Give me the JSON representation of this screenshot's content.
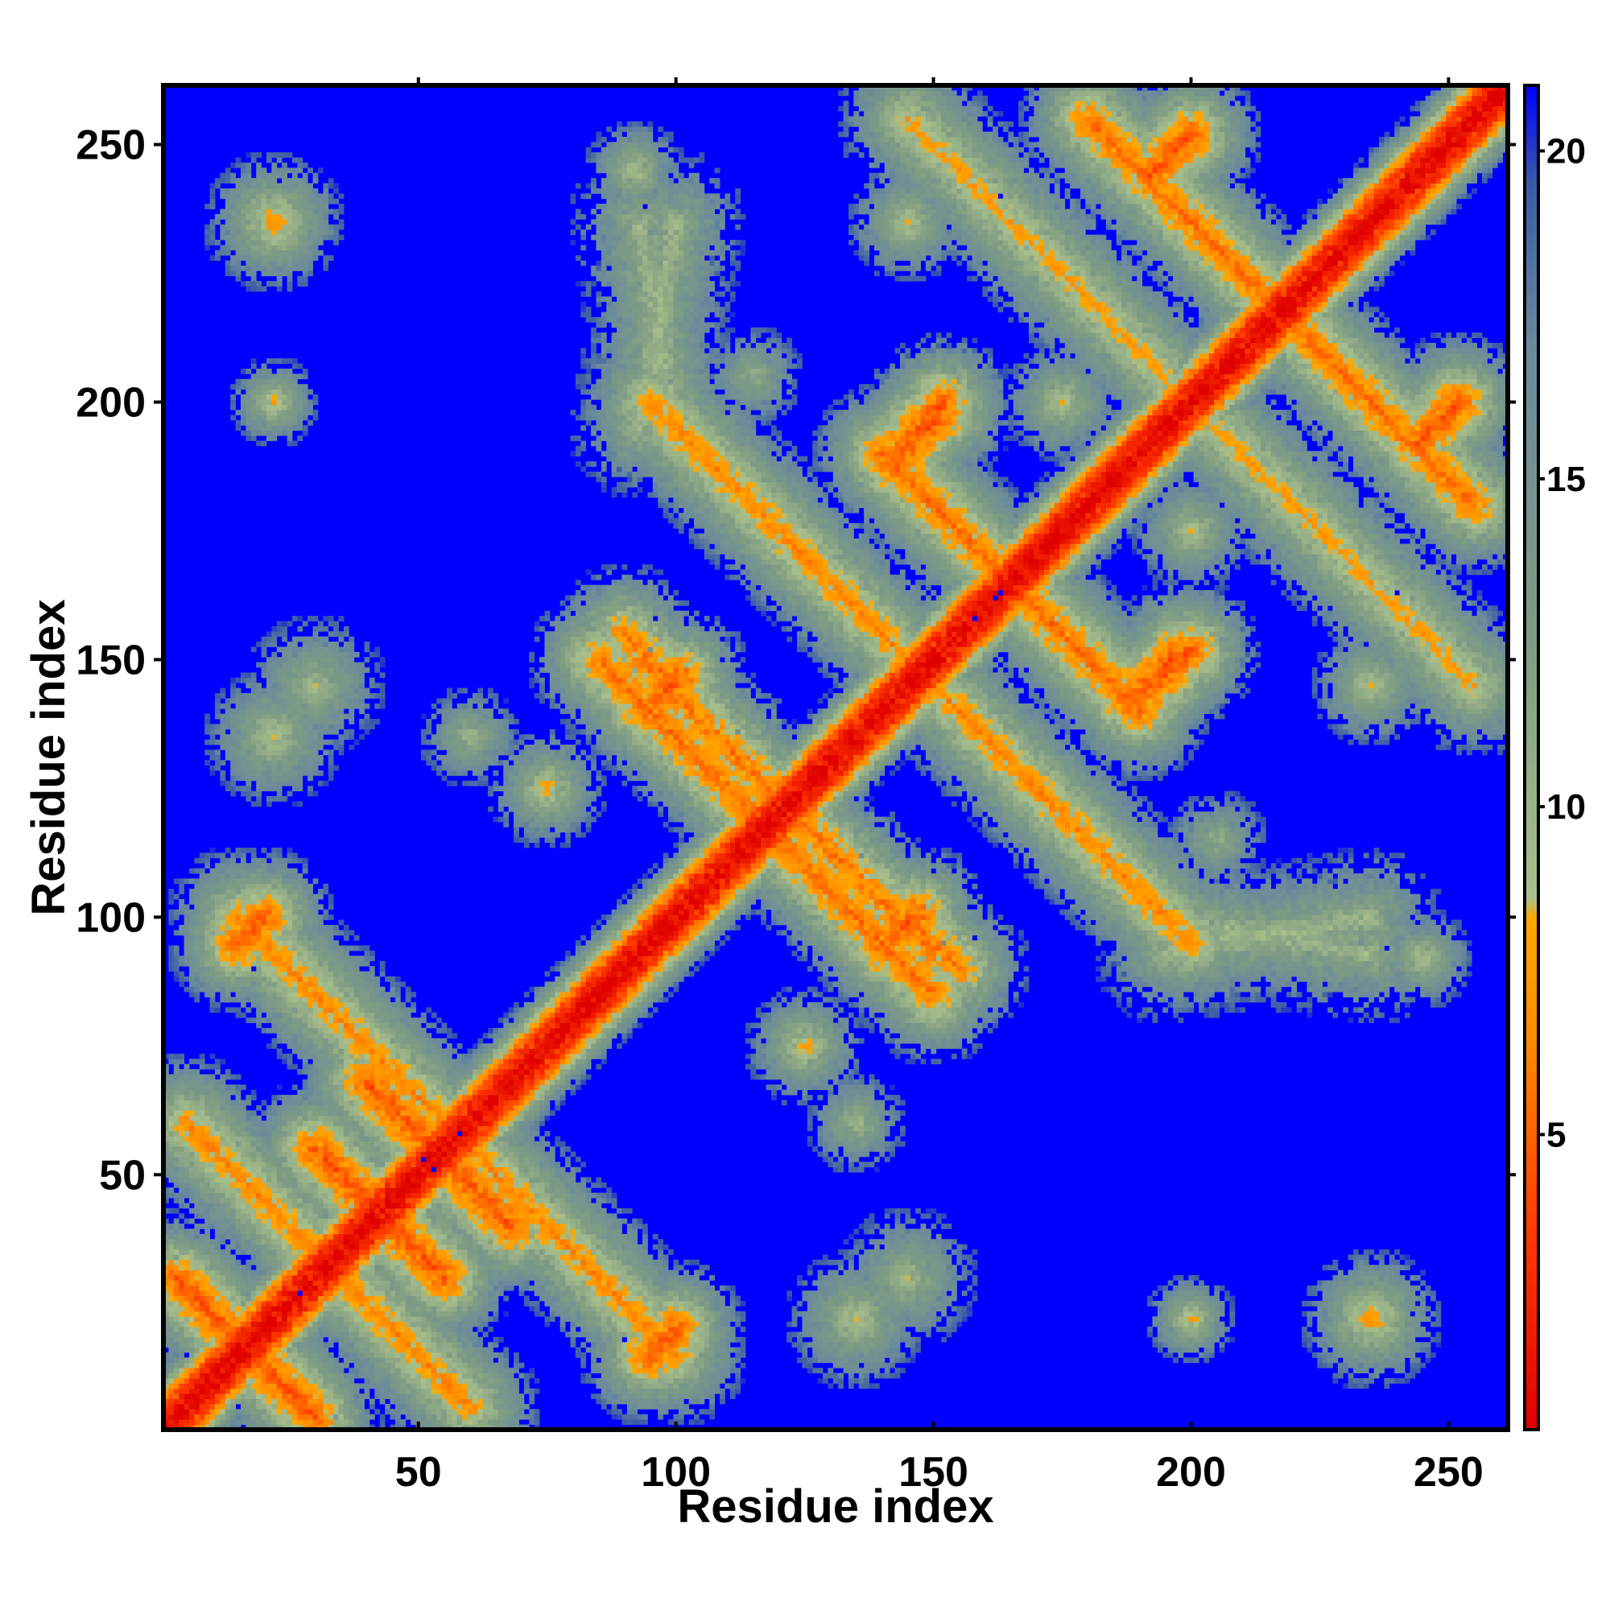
{
  "chart_data": {
    "type": "heatmap",
    "title": "",
    "xlabel": "Residue index",
    "ylabel": "Residue index",
    "xlim": [
      1,
      261
    ],
    "ylim": [
      1,
      261
    ],
    "x_ticks": [
      "50",
      "100",
      "150",
      "200",
      "250"
    ],
    "x_tick_values": [
      50,
      100,
      150,
      200,
      250
    ],
    "y_ticks": [
      "50",
      "100",
      "150",
      "200",
      "250"
    ],
    "y_tick_values": [
      50,
      100,
      150,
      200,
      250
    ],
    "grid": false,
    "colorbar": {
      "range": [
        0.5,
        21
      ],
      "ticks": [
        "5",
        "10",
        "15",
        "20"
      ],
      "tick_values": [
        5,
        10,
        15,
        20
      ],
      "placement": "right",
      "stops": [
        {
          "value": 0.5,
          "color": "#e00000"
        },
        {
          "value": 3.5,
          "color": "#ff3a00"
        },
        {
          "value": 6.5,
          "color": "#ff8c00"
        },
        {
          "value": 8.3,
          "color": "#ffa800"
        },
        {
          "value": 8.6,
          "color": "#a9c08b"
        },
        {
          "value": 12.5,
          "color": "#7f9c83"
        },
        {
          "value": 17,
          "color": "#6b8a9b"
        },
        {
          "value": 19.5,
          "color": "#3a5aa8"
        },
        {
          "value": 21,
          "color": "#0000ff"
        }
      ]
    },
    "background_color": "#0000ff",
    "contact_features": [
      {
        "kind": "band",
        "x1": 1,
        "y1": 1,
        "x2": 261,
        "y2": 261,
        "min_value": 0.8,
        "core_width": 3,
        "halo_width": 10
      },
      {
        "kind": "band",
        "x1": 3,
        "y1": 30,
        "x2": 28,
        "y2": 5,
        "min_value": 5,
        "core_width": 3,
        "halo_width": 14
      },
      {
        "kind": "band",
        "x1": 30,
        "y1": 55,
        "x2": 55,
        "y2": 30,
        "min_value": 5,
        "core_width": 3,
        "halo_width": 14
      },
      {
        "kind": "band",
        "x1": 40,
        "y1": 68,
        "x2": 68,
        "y2": 40,
        "min_value": 5,
        "core_width": 3,
        "halo_width": 14
      },
      {
        "kind": "band",
        "x1": 15,
        "y1": 100,
        "x2": 100,
        "y2": 15,
        "min_value": 7,
        "core_width": 3,
        "halo_width": 14
      },
      {
        "kind": "band",
        "x1": 5,
        "y1": 60,
        "x2": 60,
        "y2": 5,
        "min_value": 7,
        "core_width": 3,
        "halo_width": 14
      },
      {
        "kind": "band",
        "x1": 85,
        "y1": 150,
        "x2": 150,
        "y2": 85,
        "min_value": 6,
        "core_width": 3,
        "halo_width": 14
      },
      {
        "kind": "band",
        "x1": 93,
        "y1": 150,
        "x2": 125,
        "y2": 118,
        "min_value": 6,
        "core_width": 3,
        "halo_width": 14
      },
      {
        "kind": "band",
        "x1": 95,
        "y1": 200,
        "x2": 200,
        "y2": 95,
        "min_value": 7,
        "core_width": 3,
        "halo_width": 14
      },
      {
        "kind": "band",
        "x1": 140,
        "y1": 190,
        "x2": 190,
        "y2": 140,
        "min_value": 6,
        "core_width": 3,
        "halo_width": 14
      },
      {
        "kind": "band",
        "x1": 180,
        "y1": 255,
        "x2": 255,
        "y2": 180,
        "min_value": 6,
        "core_width": 3,
        "halo_width": 14
      },
      {
        "kind": "band",
        "x1": 145,
        "y1": 255,
        "x2": 255,
        "y2": 145,
        "min_value": 8,
        "core_width": 3,
        "halo_width": 14
      },
      {
        "kind": "band",
        "x1": 185,
        "y1": 250,
        "x2": 250,
        "y2": 185,
        "min_value": 7,
        "core_width": 3,
        "halo_width": 14
      },
      {
        "kind": "band",
        "x1": 140,
        "y1": 94,
        "x2": 147,
        "y2": 101,
        "min_value": 5,
        "core_width": 3,
        "halo_width": 14
      },
      {
        "kind": "band",
        "x1": 192,
        "y1": 144,
        "x2": 200,
        "y2": 152,
        "min_value": 5,
        "core_width": 3,
        "halo_width": 14
      },
      {
        "kind": "band",
        "x1": 142,
        "y1": 188,
        "x2": 152,
        "y2": 198,
        "min_value": 5,
        "core_width": 3,
        "halo_width": 14
      },
      {
        "kind": "band",
        "x1": 244,
        "y1": 192,
        "x2": 252,
        "y2": 200,
        "min_value": 5,
        "core_width": 3,
        "halo_width": 14
      },
      {
        "kind": "band",
        "x1": 192,
        "y1": 244,
        "x2": 200,
        "y2": 252,
        "min_value": 5,
        "core_width": 3,
        "halo_width": 14
      },
      {
        "kind": "band",
        "x1": 95,
        "y1": 15,
        "x2": 100,
        "y2": 20,
        "min_value": 5,
        "core_width": 3,
        "halo_width": 14
      },
      {
        "kind": "band",
        "x1": 15,
        "y1": 95,
        "x2": 20,
        "y2": 100,
        "min_value": 5,
        "core_width": 3,
        "halo_width": 14
      },
      {
        "kind": "band",
        "x1": 90,
        "y1": 155,
        "x2": 100,
        "y2": 145,
        "min_value": 6,
        "core_width": 3,
        "halo_width": 14
      },
      {
        "kind": "band",
        "x1": 93,
        "y1": 235,
        "x2": 100,
        "y2": 195,
        "min_value": 10,
        "core_width": 3,
        "halo_width": 14
      },
      {
        "kind": "band",
        "x1": 195,
        "y1": 93,
        "x2": 235,
        "y2": 100,
        "min_value": 10,
        "core_width": 3,
        "halo_width": 14
      },
      {
        "kind": "blob",
        "x": 22,
        "y": 235,
        "r": 14,
        "min_value": 7
      },
      {
        "kind": "blob",
        "x": 235,
        "y": 22,
        "r": 14,
        "min_value": 7
      },
      {
        "kind": "blob",
        "x": 22,
        "y": 200,
        "r": 9,
        "min_value": 8
      },
      {
        "kind": "blob",
        "x": 200,
        "y": 22,
        "r": 9,
        "min_value": 8
      },
      {
        "kind": "blob",
        "x": 22,
        "y": 135,
        "r": 14,
        "min_value": 9
      },
      {
        "kind": "blob",
        "x": 135,
        "y": 22,
        "r": 14,
        "min_value": 9
      },
      {
        "kind": "blob",
        "x": 75,
        "y": 125,
        "r": 12,
        "min_value": 8
      },
      {
        "kind": "blob",
        "x": 125,
        "y": 75,
        "r": 12,
        "min_value": 8
      },
      {
        "kind": "blob",
        "x": 60,
        "y": 135,
        "r": 10,
        "min_value": 10
      },
      {
        "kind": "blob",
        "x": 135,
        "y": 60,
        "r": 10,
        "min_value": 10
      },
      {
        "kind": "blob",
        "x": 235,
        "y": 145,
        "r": 12,
        "min_value": 9
      },
      {
        "kind": "blob",
        "x": 145,
        "y": 235,
        "r": 12,
        "min_value": 9
      },
      {
        "kind": "blob",
        "x": 92,
        "y": 245,
        "r": 10,
        "min_value": 9
      },
      {
        "kind": "blob",
        "x": 245,
        "y": 92,
        "r": 10,
        "min_value": 9
      },
      {
        "kind": "blob",
        "x": 145,
        "y": 30,
        "r": 14,
        "min_value": 10
      },
      {
        "kind": "blob",
        "x": 30,
        "y": 145,
        "r": 14,
        "min_value": 10
      },
      {
        "kind": "blob",
        "x": 175,
        "y": 200,
        "r": 12,
        "min_value": 9
      },
      {
        "kind": "blob",
        "x": 200,
        "y": 175,
        "r": 12,
        "min_value": 9
      },
      {
        "kind": "blob",
        "x": 115,
        "y": 205,
        "r": 10,
        "min_value": 11
      },
      {
        "kind": "blob",
        "x": 205,
        "y": 115,
        "r": 10,
        "min_value": 11
      }
    ]
  }
}
